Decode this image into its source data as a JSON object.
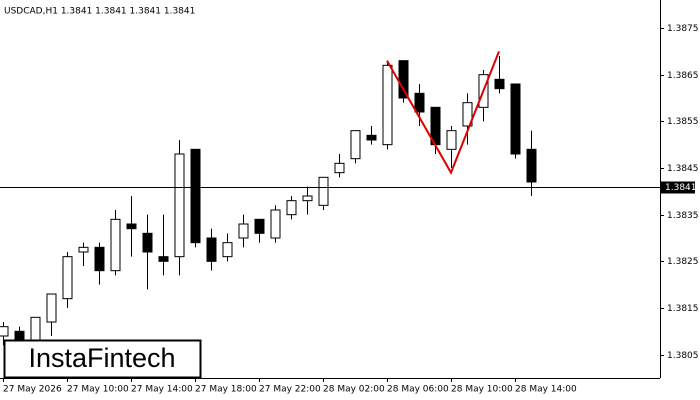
{
  "chart_data": {
    "type": "candlestick",
    "title": "USDCAD,H1  1.3841 1.3841 1.3841 1.3841",
    "categories": [
      "27 May 2026",
      null,
      null,
      null,
      "27 May 10:00",
      null,
      null,
      null,
      "27 May 14:00",
      null,
      null,
      null,
      "27 May 18:00",
      null,
      null,
      null,
      "27 May 22:00",
      null,
      null,
      null,
      "28 May 02:00",
      null,
      null,
      null,
      "28 May 06:00",
      null,
      null,
      null,
      "28 May 10:00",
      null,
      null,
      null,
      "28 May 14:00",
      null
    ],
    "open": [
      1.3809,
      1.381,
      1.3808,
      1.3812,
      1.3817,
      1.3827,
      1.3828,
      1.3823,
      1.3833,
      1.3831,
      1.3826,
      1.3826,
      1.3849,
      1.383,
      1.3826,
      1.383,
      1.3834,
      1.383,
      1.3835,
      1.3838,
      1.3837,
      1.3844,
      1.3847,
      1.3852,
      1.385,
      1.3868,
      1.3861,
      1.3858,
      1.3849,
      1.3854,
      1.3858,
      1.3864,
      1.3863,
      1.3849
    ],
    "high": [
      1.3812,
      1.3811,
      1.3813,
      1.3818,
      1.3827,
      1.3829,
      1.3829,
      1.3836,
      1.3839,
      1.3835,
      1.3835,
      1.3851,
      1.3849,
      1.3832,
      1.3831,
      1.3835,
      1.3834,
      1.3837,
      1.3839,
      1.3841,
      1.3843,
      1.3848,
      1.3853,
      1.3854,
      1.3868,
      1.3868,
      1.3863,
      1.3858,
      1.3854,
      1.3861,
      1.3866,
      1.3869,
      1.3863,
      1.3853
    ],
    "low": [
      1.3807,
      1.3806,
      1.3807,
      1.3809,
      1.3815,
      1.3824,
      1.382,
      1.3822,
      1.3826,
      1.3819,
      1.3822,
      1.3822,
      1.3828,
      1.3823,
      1.3825,
      1.3828,
      1.3829,
      1.3829,
      1.3834,
      1.3835,
      1.3836,
      1.3843,
      1.3846,
      1.385,
      1.3849,
      1.3859,
      1.3854,
      1.3848,
      1.3845,
      1.385,
      1.3855,
      1.3861,
      1.3847,
      1.3839
    ],
    "close": [
      1.3811,
      1.3808,
      1.3813,
      1.3818,
      1.3826,
      1.3828,
      1.3823,
      1.3834,
      1.3832,
      1.3827,
      1.3825,
      1.3848,
      1.3829,
      1.3825,
      1.3829,
      1.3833,
      1.3831,
      1.3836,
      1.3838,
      1.3839,
      1.3843,
      1.3846,
      1.3853,
      1.3851,
      1.3867,
      1.386,
      1.3857,
      1.385,
      1.3853,
      1.3859,
      1.3865,
      1.3862,
      1.3848,
      1.3842
    ],
    "up_color": "#ffffff",
    "down_color": "#000000",
    "ylim": [
      1.38,
      1.3881
    ],
    "yticks": [
      1.3805,
      1.3815,
      1.3825,
      1.3835,
      1.3845,
      1.3855,
      1.3865,
      1.3875
    ],
    "last_price": 1.3841,
    "pattern": {
      "color": "#e00000",
      "x": [
        24,
        28,
        31
      ],
      "values": [
        1.3868,
        1.3844,
        1.387
      ]
    },
    "watermark": "InstaFintech"
  }
}
